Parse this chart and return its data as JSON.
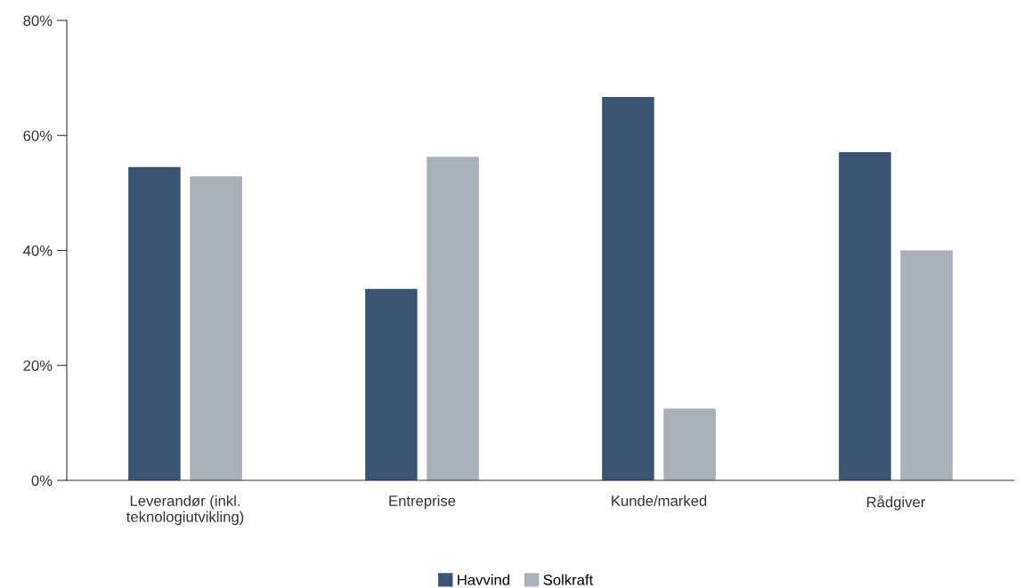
{
  "chart_data": {
    "type": "bar",
    "categories": [
      "Leverandør (inkl.\nteknologiutvikling)",
      "Entreprise",
      "Kunde/marked",
      "Rådgiver"
    ],
    "series": [
      {
        "name": "Havvind",
        "color": "#3a5573",
        "values": [
          54.5,
          33.3,
          66.7,
          57.1
        ]
      },
      {
        "name": "Solkraft",
        "color": "#aab0b7",
        "values": [
          52.9,
          56.3,
          12.5,
          40.0
        ]
      }
    ],
    "ylim": [
      0,
      80
    ],
    "yticks": [
      {
        "value": 0,
        "label": "0%"
      },
      {
        "value": 20,
        "label": "20%"
      },
      {
        "value": 40,
        "label": "40%"
      },
      {
        "value": 60,
        "label": "60%"
      },
      {
        "value": 80,
        "label": "80%"
      }
    ],
    "grid": false,
    "legend": "bottom"
  }
}
